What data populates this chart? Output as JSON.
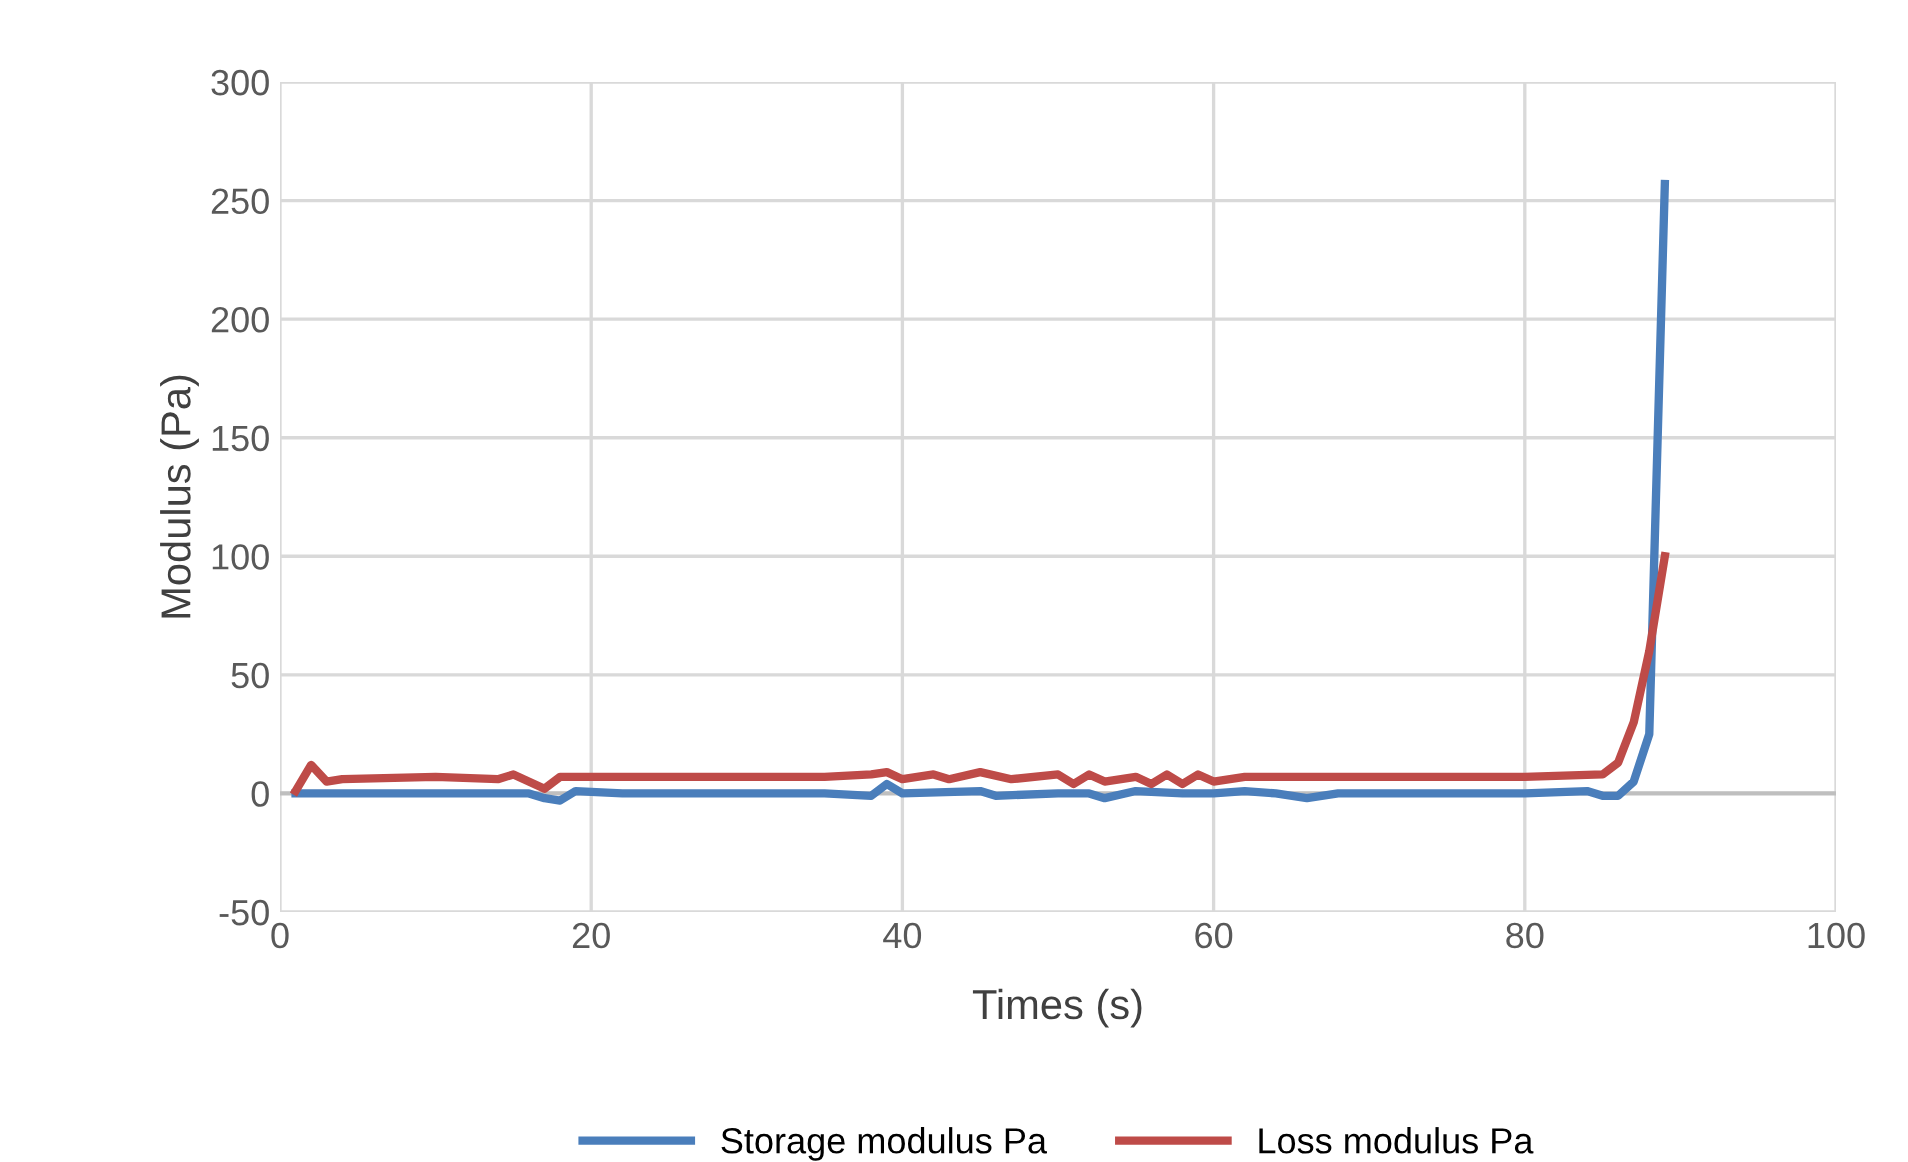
{
  "chart_data": {
    "type": "line",
    "xlabel": "Times (s)",
    "ylabel": "Modulus (Pa)",
    "xlim": [
      0,
      100
    ],
    "xticks": [
      0,
      20,
      40,
      60,
      80,
      100
    ],
    "ylim": [
      -50,
      300
    ],
    "yticks": [
      -50,
      0,
      50,
      100,
      150,
      200,
      250,
      300
    ],
    "grid": true,
    "legend": "bottom",
    "marker": "none",
    "line_style": "solid",
    "series": [
      {
        "name": "Storage modulus Pa",
        "color": "#4a7ebb",
        "x": [
          1,
          5,
          10,
          15,
          16,
          17,
          18,
          19,
          22,
          25,
          28,
          30,
          35,
          38,
          39,
          40,
          45,
          46,
          50,
          52,
          53,
          55,
          58,
          60,
          62,
          64,
          66,
          68,
          70,
          75,
          80,
          84,
          85,
          86,
          87,
          88,
          89
        ],
        "values": [
          0,
          0,
          0,
          0,
          0,
          -2,
          -3,
          1,
          0,
          0,
          0,
          0,
          0,
          -1,
          4,
          0,
          1,
          -1,
          0,
          0,
          -2,
          1,
          0,
          0,
          1,
          0,
          -2,
          0,
          0,
          0,
          0,
          1,
          -1,
          -1,
          5,
          25,
          257
        ]
      },
      {
        "name": "Loss modulus Pa",
        "color": "#be4b48",
        "x": [
          1,
          2,
          3,
          4,
          10,
          14,
          15,
          17,
          18,
          25,
          30,
          35,
          38,
          39,
          40,
          42,
          43,
          45,
          47,
          50,
          51,
          52,
          53,
          55,
          56,
          57,
          58,
          59,
          60,
          62,
          70,
          75,
          80,
          85,
          86,
          87,
          88,
          89
        ],
        "values": [
          1,
          12,
          5,
          6,
          7,
          6,
          8,
          2,
          7,
          7,
          7,
          7,
          8,
          9,
          6,
          8,
          6,
          9,
          6,
          8,
          4,
          8,
          5,
          7,
          4,
          8,
          4,
          8,
          5,
          7,
          7,
          7,
          7,
          8,
          13,
          30,
          60,
          100
        ]
      }
    ]
  }
}
